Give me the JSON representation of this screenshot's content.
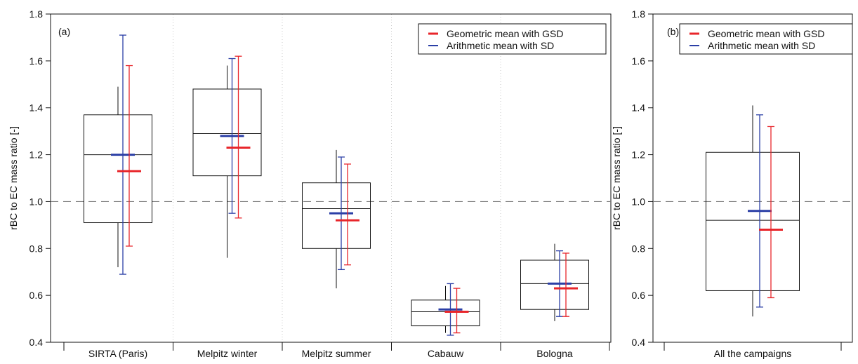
{
  "chart_data": [
    {
      "panel_label": "(a)",
      "type": "box",
      "ylabel": "rBC to EC mass ratio [-]",
      "xlabel": "",
      "ylim": [
        0.4,
        1.8
      ],
      "yticks": [
        0.4,
        0.6,
        0.8,
        1.0,
        1.2,
        1.4,
        1.6,
        1.8
      ],
      "reference_line": 1.0,
      "grid": "vertical dotted lines between categories",
      "legend_position": "top-right",
      "legend": [
        {
          "label": "Geometric mean with GSD",
          "color": "#e8262b"
        },
        {
          "label": "Arithmetic mean with SD",
          "color": "#2b3fa6"
        }
      ],
      "categories": [
        "SIRTA (Paris)",
        "Melpitz winter",
        "Melpitz summer",
        "Cabauw",
        "Bologna"
      ],
      "boxes": [
        {
          "whisker_low": 0.72,
          "q1": 0.91,
          "median": 1.2,
          "q3": 1.37,
          "whisker_high": 1.49
        },
        {
          "whisker_low": 0.76,
          "q1": 1.11,
          "median": 1.29,
          "q3": 1.48,
          "whisker_high": 1.58
        },
        {
          "whisker_low": 0.63,
          "q1": 0.8,
          "median": 0.97,
          "q3": 1.08,
          "whisker_high": 1.22
        },
        {
          "whisker_low": 0.44,
          "q1": 0.47,
          "median": 0.53,
          "q3": 0.58,
          "whisker_high": 0.64
        },
        {
          "whisker_low": 0.49,
          "q1": 0.54,
          "median": 0.65,
          "q3": 0.75,
          "whisker_high": 0.82
        }
      ],
      "arithmetic_mean": [
        {
          "mean": 1.2,
          "low": 0.69,
          "high": 1.71
        },
        {
          "mean": 1.28,
          "low": 0.95,
          "high": 1.61
        },
        {
          "mean": 0.95,
          "low": 0.71,
          "high": 1.19
        },
        {
          "mean": 0.54,
          "low": 0.43,
          "high": 0.65
        },
        {
          "mean": 0.65,
          "low": 0.51,
          "high": 0.79
        }
      ],
      "geometric_mean": [
        {
          "mean": 1.13,
          "low": 0.81,
          "high": 1.58
        },
        {
          "mean": 1.23,
          "low": 0.93,
          "high": 1.62
        },
        {
          "mean": 0.92,
          "low": 0.73,
          "high": 1.16
        },
        {
          "mean": 0.53,
          "low": 0.44,
          "high": 0.63
        },
        {
          "mean": 0.63,
          "low": 0.51,
          "high": 0.78
        }
      ]
    },
    {
      "panel_label": "(b)",
      "type": "box",
      "ylabel": "rBC to EC mass ratio [-]",
      "xlabel": "",
      "ylim": [
        0.4,
        1.8
      ],
      "yticks": [
        0.4,
        0.6,
        0.8,
        1.0,
        1.2,
        1.4,
        1.6,
        1.8
      ],
      "reference_line": 1.0,
      "legend_position": "top",
      "legend": [
        {
          "label": "Geometric mean with GSD",
          "color": "#e8262b"
        },
        {
          "label": "Arithmetic mean with SD",
          "color": "#2b3fa6"
        }
      ],
      "categories": [
        "All the campaigns"
      ],
      "boxes": [
        {
          "whisker_low": 0.51,
          "q1": 0.62,
          "median": 0.92,
          "q3": 1.21,
          "whisker_high": 1.41
        }
      ],
      "arithmetic_mean": [
        {
          "mean": 0.96,
          "low": 0.55,
          "high": 1.37
        }
      ],
      "geometric_mean": [
        {
          "mean": 0.88,
          "low": 0.59,
          "high": 1.32
        }
      ]
    }
  ]
}
